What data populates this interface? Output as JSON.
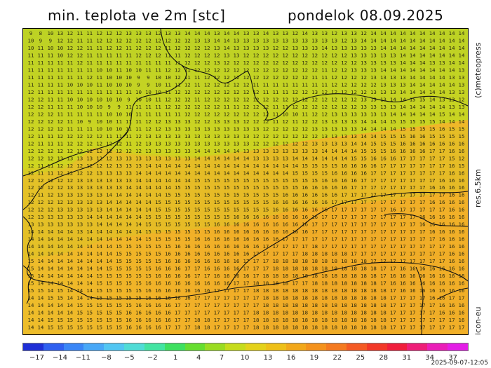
{
  "header": {
    "title": "min. teplota ve 2m [stc]",
    "date": "pondelok 08.09.2025"
  },
  "side_labels": {
    "credit": "(c)meteopress",
    "resolution": "res.6.5km",
    "model": "icon-eu"
  },
  "timestamp": "2025-09-07-12:05",
  "colorbar": {
    "labels": [
      "−17",
      "−14",
      "−11",
      "−8",
      "−5",
      "−2",
      "1",
      "4",
      "7",
      "10",
      "13",
      "16",
      "19",
      "22",
      "25",
      "28",
      "31",
      "34",
      "37"
    ],
    "colors": [
      "#1f2fd6",
      "#2f60f0",
      "#3a86f6",
      "#48a8f7",
      "#52c6f2",
      "#50dcd6",
      "#43e4a2",
      "#3ee060",
      "#66de30",
      "#9adc22",
      "#c6dc1c",
      "#e4d21a",
      "#eec018",
      "#f2a81a",
      "#f4921c",
      "#f47a20",
      "#f45a24",
      "#f23828",
      "#f01e3c",
      "#ee1e78",
      "#ea1eb8",
      "#e31ee6"
    ]
  },
  "map": {
    "grid_values": [
      "9 8 10 13 12 11 11 12 12 12 13 13 13 12 13 13 14 14 14 13 14 14 13 13 14 13 13 12 14 13 13 12 13 13 12 14 14 14 14 14 14 14 14 14 14",
      "10 9 9 12 12 11 11 12 12 12 12 12 12 12 12 12 12 13 13 14 14 13 13 13 13 13 13 13 13 13 13 13 12 13 14 14 14 14 14 14 14 14 14 14 14",
      "10 11 10 10 12 12 11 11 12 12 11 12 12 12 11 12 12 12 12 13 14 13 13 13 13 12 12 13 13 13 14 13 13 13 13 13 14 14 14 14 14 14 14 14 14",
      "11 11 11 10 12 12 11 11 11 11 11 12 12 12 11 11 12 12 12 12 13 13 12 12 12 12 12 12 12 12 12 12 12 13 13 13 13 13 14 14 14 14 14 14 14",
      "11 11 11 11 11 12 11 11 11 11 11 11 11 11 11 11 12 12 12 13 12 12 12 12 12 12 12 12 12 12 12 12 12 12 13 13 13 13 14 14 14 13 13 14 14",
      "11 11 11 11 11 11 11 10 10 11 10 10 11 11 12 12 11 12 12 12 12 12 12 12 12 12 12 12 12 12 11 12 12 13 13 13 14 14 14 14 14 14 14 14 13",
      "11 11 11 11 11 11 12 11 10 10 10 9 9 10 10 12 11 11 12 12 12 12 12 12 12 12 12 12 12 11 11 12 12 12 12 13 13 13 13 14 14 14 14 13 13",
      "11 11 11 11 10 10 10 11 10 10 10 9 9 10 11 11 12 11 12 12 12 12 12 11 11 11 11 11 11 11 11 12 12 12 12 12 13 13 13 14 14 14 14 14 13",
      "12 11 11 11 11 11 11 11 11 11 11 10 10 10 11 12 12 12 12 12 12 12 12 12 11 11 11 12 12 13 12 12 12 12 12 13 13 13 14 14 14 14 14 13 13",
      "12 12 11 11 10 10 10 10 10 10 9 10 10 11 12 12 12 11 12 12 12 12 12 12 12 12 12 12 12 12 12 12 12 12 13 13 13 14 14 15 15 14 13 13 12",
      "12 12 11 11 11 10 10 10 9 9 11 11 11 11 12 12 12 12 12 12 11 11 12 12 12 11 11 12 12 12 12 12 12 12 13 13 13 13 14 14 14 14 14 13 13",
      "12 12 12 11 11 11 11 11 10 10 10 11 11 11 11 11 12 12 12 12 12 12 12 12 12 11 10 10 11 12 12 13 13 13 13 13 13 14 14 14 14 14 15 14 14",
      "12 12 12 12 11 10 9 10 10 11 11 11 12 12 13 13 13 12 12 13 13 13 12 12 12 11 12 11 12 12 13 13 13 13 14 14 14 15 15 15 15 15 14 14 14",
      "12 12 12 12 11 11 11 10 10 10 11 11 12 12 13 13 13 13 13 13 13 13 13 13 12 12 12 12 12 13 13 13 13 13 14 14 14 14 15 15 15 15 16 15 15",
      "12 11 11 12 12 12 12 12 11 11 11 12 13 13 13 13 13 13 13 13 13 13 13 12 12 12 12 12 12 12 13 13 13 13 14 14 15 15 15 16 16 15 15 15 15",
      "12 11 11 11 12 12 12 12 12 12 11 12 13 13 13 13 13 13 13 13 13 13 13 12 12 12 12 12 12 13 13 13 13 14 14 15 15 15 16 16 16 16 16 16 16",
      "12 12 12 12 12 12 12 12 12 12 12 12 13 13 13 13 13 14 14 14 14 14 13 13 13 13 13 13 13 13 14 14 14 14 15 15 15 16 16 16 16 17 17 16 16",
      "12 12 12 13 13 13 13 12 12 13 13 13 13 13 13 13 13 14 14 14 14 14 14 13 13 13 13 14 14 14 14 14 14 15 15 16 16 16 17 17 17 17 17 15 12",
      "12 11 11 12 12 12 12 12 12 13 13 13 14 14 14 14 14 14 14 14 14 14 14 14 14 14 14 14 15 15 15 15 16 16 16 16 17 17 17 17 17 17 17 16 15",
      "12 11 11 12 12 12 12 13 13 13 13 14 14 14 14 14 14 14 14 14 14 14 14 14 14 14 14 15 15 15 15 16 16 16 16 17 17 17 17 17 17 17 17 16 16",
      "12 12 12 12 12 13 13 13 13 13 13 14 14 14 14 14 14 15 15 15 15 15 15 15 15 15 15 15 15 15 16 16 16 16 17 17 17 17 17 17 17 17 16 16 16",
      "12 12 12 12 13 13 13 13 13 13 14 14 14 14 14 15 15 15 15 15 15 15 15 15 15 15 15 15 16 16 16 16 16 17 17 17 17 17 17 17 17 16 16 16 16",
      "12 11 12 13 13 13 13 13 14 14 14 14 14 14 15 15 15 15 15 15 15 15 15 15 15 15 16 16 16 16 16 16 17 17 17 17 17 17 17 17 17 17 17 16 16",
      "12 12 12 12 13 13 13 13 14 14 14 14 14 15 15 15 15 15 15 15 15 15 15 15 15 16 16 16 16 16 16 17 17 17 17 17 17 17 17 17 17 16 16 16 16",
      "12 12 12 13 13 13 13 13 14 14 14 14 14 15 15 15 15 15 15 15 15 15 15 15 15 16 16 16 16 16 16 17 17 17 17 17 17 16 17 17 17 17 17 16 16",
      "12 13 13 13 13 13 14 14 14 14 14 14 15 15 15 15 15 15 15 15 15 16 16 16 16 16 16 16 16 16 17 17 17 17 17 17 17 17 17 17 16 16 16 16 16",
      "13 13 13 13 13 13 13 14 14 14 14 14 15 15 15 15 15 15 15 16 16 16 16 16 16 16 16 16 16 17 17 17 17 17 17 17 17 17 17 17 16 16 16 16 16",
      "14 14 14 14 14 13 14 14 14 14 14 14 15 15 15 15 15 15 15 16 16 16 16 16 16 16 16 16 16 17 17 17 17 17 17 17 17 17 17 17 17 16 16 16 16",
      "14 14 14 14 14 14 14 14 14 14 14 14 15 15 15 15 15 16 16 16 16 16 16 16 16 16 17 17 17 17 17 17 17 17 17 17 17 17 17 17 17 17 16 16 16",
      "14 14 14 14 14 14 14 14 14 15 15 15 15 15 15 16 16 16 16 16 16 16 16 16 17 17 17 17 17 18 17 17 17 17 17 17 17 17 17 17 17 17 17 16 16",
      "14 14 14 14 14 14 14 14 14 15 15 15 15 15 16 16 16 16 16 16 16 16 16 17 17 17 17 17 18 18 18 18 18 17 17 17 17 17 17 17 17 17 17 16 16",
      "15 14 14 14 14 14 14 14 14 15 15 15 15 15 16 16 16 16 16 16 16 16 17 17 17 18 18 18 18 18 18 18 18 18 18 17 17 17 17 17 17 17 17 16 16",
      "15 14 14 14 14 14 14 14 15 15 15 15 15 16 16 16 17 17 16 16 16 16 17 17 17 18 18 18 18 18 18 18 18 18 18 18 17 17 16 16 16 16 16 16 16",
      "15 14 14 14 14 14 14 15 15 15 15 15 15 16 16 16 16 17 17 16 16 16 16 17 18 18 18 18 18 18 18 18 18 18 18 18 17 16 16 16 16 16 16 16 16",
      "15 14 14 14 14 14 14 15 15 15 15 15 16 16 16 16 16 16 16 16 16 17 17 18 18 18 18 17 17 18 18 18 18 18 18 18 17 16 16 16 16 16 16 16 16",
      "15 15 14 15 14 14 14 15 15 15 15 15 16 16 16 16 16 16 16 17 17 17 17 18 18 18 18 18 18 18 18 18 18 18 18 18 18 17 16 16 16 16 16 16 16",
      "14 14 15 15 14 14 14 15 15 15 15 15 16 16 16 16 16 17 17 17 17 17 17 17 18 18 18 18 18 18 18 18 18 18 18 18 18 17 17 17 17 16 16 17 17",
      "14 14 14 14 14 15 15 15 15 15 15 16 16 16 16 17 17 17 17 17 17 17 17 17 18 18 18 18 18 18 18 18 18 18 18 18 18 17 17 17 17 17 16 16 16",
      "14 14 14 14 14 15 15 15 15 15 16 16 16 16 16 17 17 17 17 17 17 17 17 18 18 18 18 18 18 18 18 18 18 18 18 18 18 17 17 17 17 17 16 16 16",
      "14 14 15 15 15 15 15 15 15 15 16 16 16 16 16 17 17 18 18 17 17 17 17 18 18 18 18 18 18 18 18 18 18 18 18 18 18 17 17 17 17 17 17 17 16",
      "14 14 15 15 15 15 15 15 15 15 16 16 16 16 17 17 17 18 18 17 17 17 17 18 18 18 18 18 18 18 18 18 18 18 18 18 18 17 17 17 17 17 17 17 17"
    ]
  }
}
